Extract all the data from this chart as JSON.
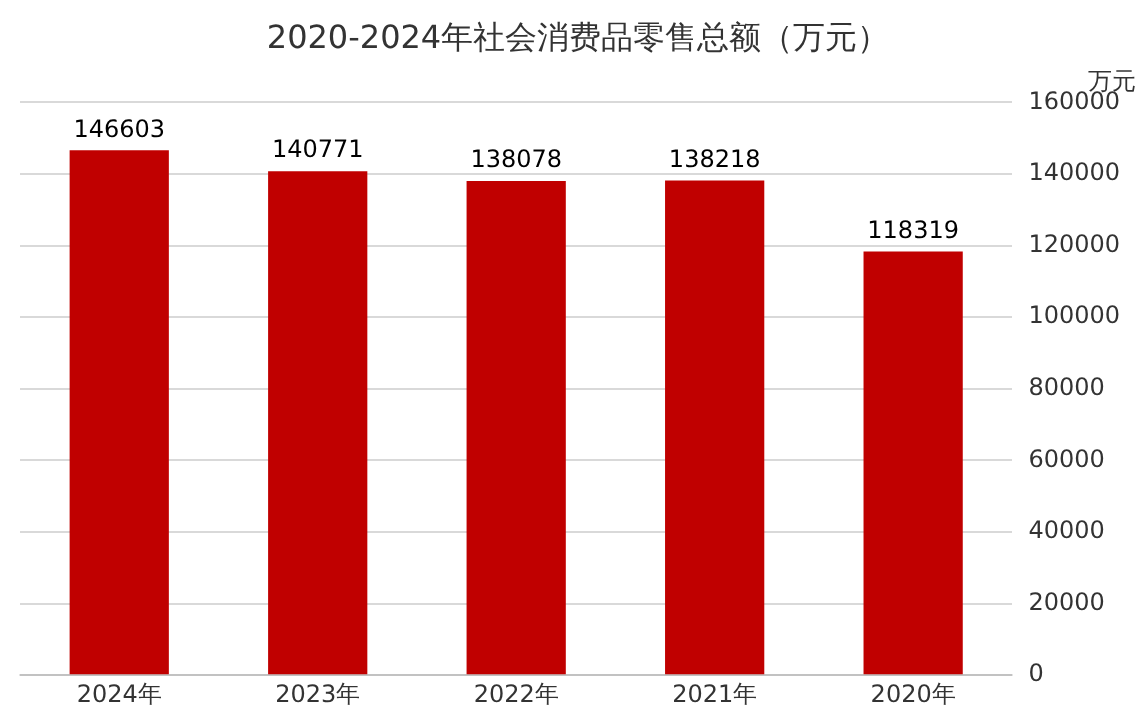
{
  "chart_data": {
    "type": "bar",
    "title": "2020-2024年社会消费品零售总额（万元）",
    "ylabel": "万元",
    "categories": [
      "2024年",
      "2023年",
      "2022年",
      "2021年",
      "2020年"
    ],
    "values": [
      146603,
      140771,
      138078,
      138218,
      118319
    ],
    "color": "#c00000",
    "ylim": [
      0,
      160000
    ],
    "yticks": [
      0,
      20000,
      40000,
      60000,
      80000,
      100000,
      120000,
      140000,
      160000
    ],
    "grid": "y",
    "data_labels": true
  }
}
